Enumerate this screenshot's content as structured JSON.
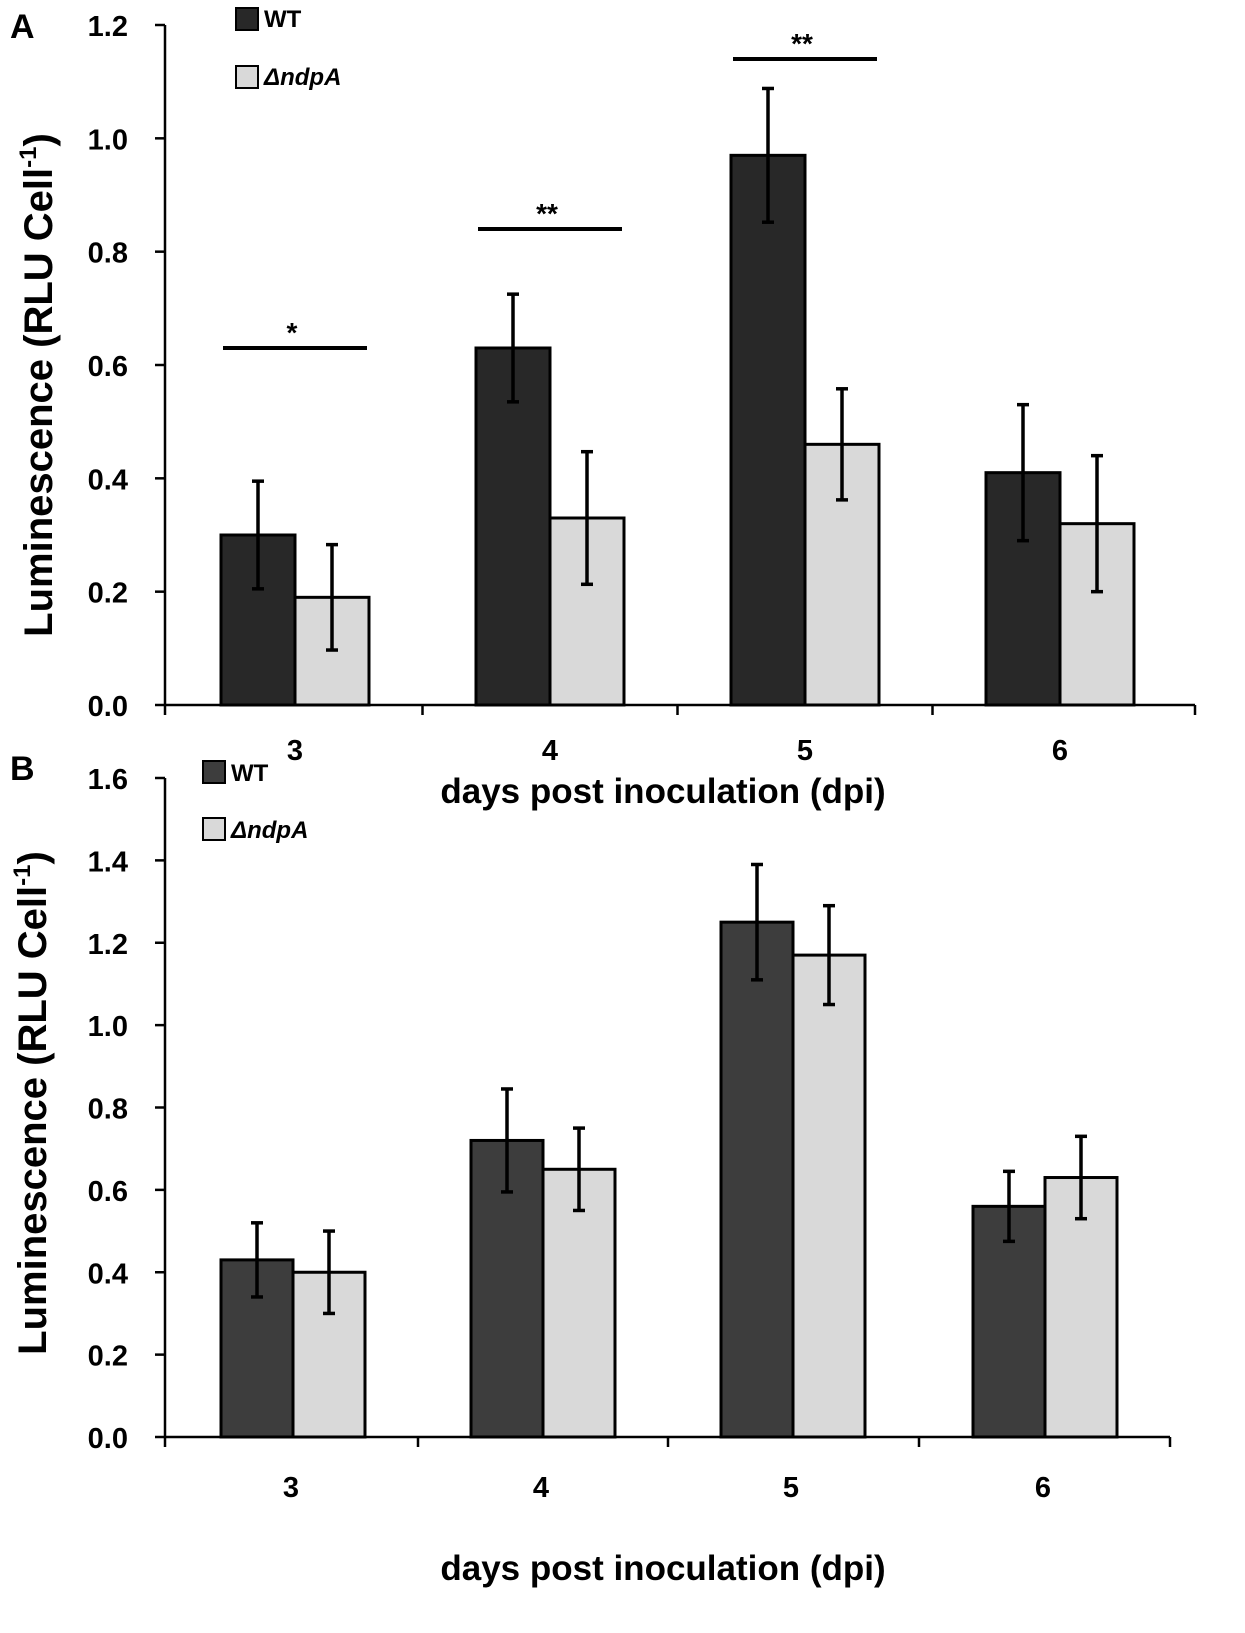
{
  "figure": {
    "panel_labels": [
      "A",
      "B"
    ]
  },
  "colors": {
    "wt_a": "#282828",
    "wt_b": "#3d3d3d",
    "mutant": "#d9d9d9",
    "stroke": "#000000"
  },
  "chart_data": [
    {
      "type": "bar",
      "panel": "A",
      "title": "",
      "xlabel": "days post inoculation (dpi)",
      "ylabel": "Luminescence (RLU Cell",
      "ylabel_superscript": "-1",
      "ylabel_close": ")",
      "ylim": [
        0,
        1.2
      ],
      "yticks": [
        "0.0",
        "0.2",
        "0.4",
        "0.6",
        "0.8",
        "1.0",
        "1.2"
      ],
      "categories": [
        "3",
        "4",
        "5",
        "6"
      ],
      "legend": {
        "position": "top-left"
      },
      "series": [
        {
          "name": "WT",
          "italic": false,
          "values": [
            0.3,
            0.63,
            0.97,
            0.41
          ],
          "errors": [
            0.095,
            0.095,
            0.118,
            0.12
          ]
        },
        {
          "name": "ΔndpA",
          "italic": true,
          "values": [
            0.19,
            0.33,
            0.46,
            0.32
          ],
          "errors": [
            0.093,
            0.117,
            0.098,
            0.12
          ]
        }
      ],
      "significance": [
        {
          "category": "3",
          "label": "*",
          "y": 0.63
        },
        {
          "category": "4",
          "label": "**",
          "y": 0.84
        },
        {
          "category": "5",
          "label": "**",
          "y": 1.14
        }
      ]
    },
    {
      "type": "bar",
      "panel": "B",
      "title": "",
      "xlabel": "days post inoculation (dpi)",
      "ylabel": "Luminescence (RLU Cell",
      "ylabel_superscript": "-1",
      "ylabel_close": ")",
      "ylim": [
        0,
        1.6
      ],
      "yticks": [
        "0.0",
        "0.2",
        "0.4",
        "0.6",
        "0.8",
        "1.0",
        "1.2",
        "1.4",
        "1.6"
      ],
      "categories": [
        "3",
        "4",
        "5",
        "6"
      ],
      "legend": {
        "position": "top-left"
      },
      "series": [
        {
          "name": "WT",
          "italic": false,
          "values": [
            0.43,
            0.72,
            1.25,
            0.56
          ],
          "errors": [
            0.09,
            0.125,
            0.14,
            0.085
          ]
        },
        {
          "name": "ΔndpA",
          "italic": true,
          "values": [
            0.4,
            0.65,
            1.17,
            0.63
          ],
          "errors": [
            0.1,
            0.1,
            0.12,
            0.1
          ]
        }
      ],
      "significance": []
    }
  ]
}
